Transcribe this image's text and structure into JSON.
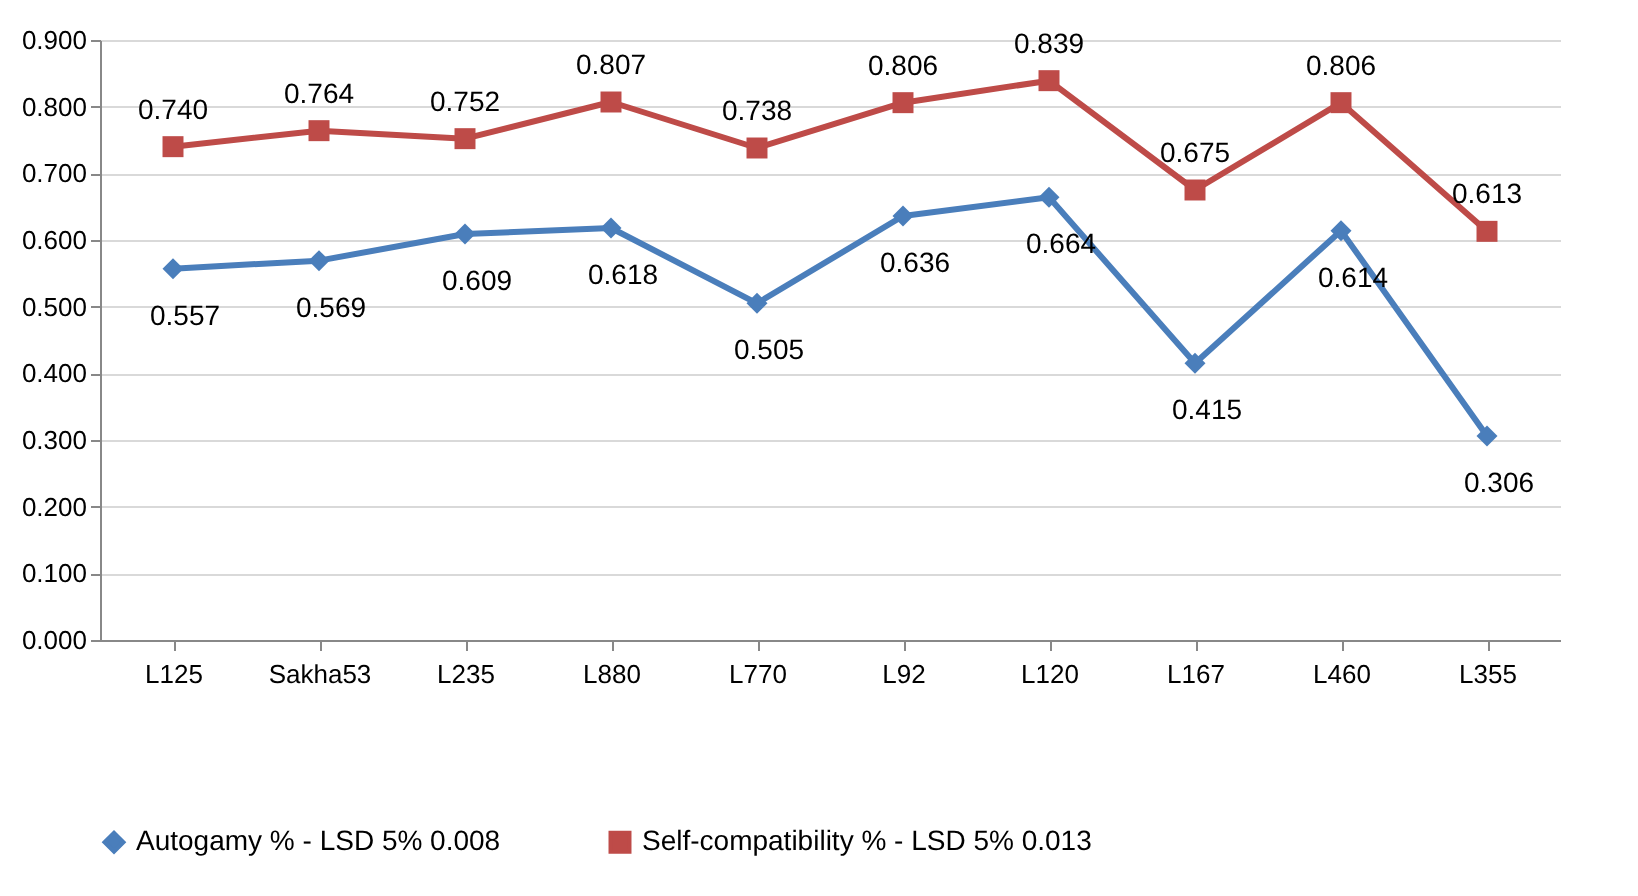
{
  "chart_data": {
    "type": "line",
    "categories": [
      "L125",
      "Sakha53",
      "L235",
      "L880",
      "L770",
      "L92",
      "L120",
      "L167",
      "L460",
      "L355"
    ],
    "series": [
      {
        "name": "Autogamy % - LSD 5% 0.008",
        "color": "#4a7ebb",
        "marker": "diamond",
        "values": [
          0.557,
          0.569,
          0.609,
          0.618,
          0.505,
          0.636,
          0.664,
          0.415,
          0.614,
          0.306
        ],
        "value_labels": [
          "0.557",
          "0.569",
          "0.609",
          "0.618",
          "0.505",
          "0.636",
          "0.664",
          "0.415",
          "0.614",
          "0.306"
        ]
      },
      {
        "name": "Self-compatibility % - LSD 5% 0.013",
        "color": "#be4b48",
        "marker": "square",
        "values": [
          0.74,
          0.764,
          0.752,
          0.807,
          0.738,
          0.806,
          0.839,
          0.675,
          0.806,
          0.613
        ],
        "value_labels": [
          "0.740",
          "0.764",
          "0.752",
          "0.807",
          "0.738",
          "0.806",
          "0.839",
          "0.675",
          "0.806",
          "0.613"
        ]
      }
    ],
    "ylim": [
      0,
      0.9
    ],
    "yticks": [
      {
        "value": 0,
        "label": "0.000"
      },
      {
        "value": 0.1,
        "label": "0.100"
      },
      {
        "value": 0.2,
        "label": "0.200"
      },
      {
        "value": 0.3,
        "label": "0.300"
      },
      {
        "value": 0.4,
        "label": "0.400"
      },
      {
        "value": 0.5,
        "label": "0.500"
      },
      {
        "value": 0.6,
        "label": "0.600"
      },
      {
        "value": 0.7,
        "label": "0.700"
      },
      {
        "value": 0.8,
        "label": "0.800"
      },
      {
        "value": 0.9,
        "label": "0.900"
      }
    ],
    "grid": "y",
    "legend": "bottom"
  }
}
